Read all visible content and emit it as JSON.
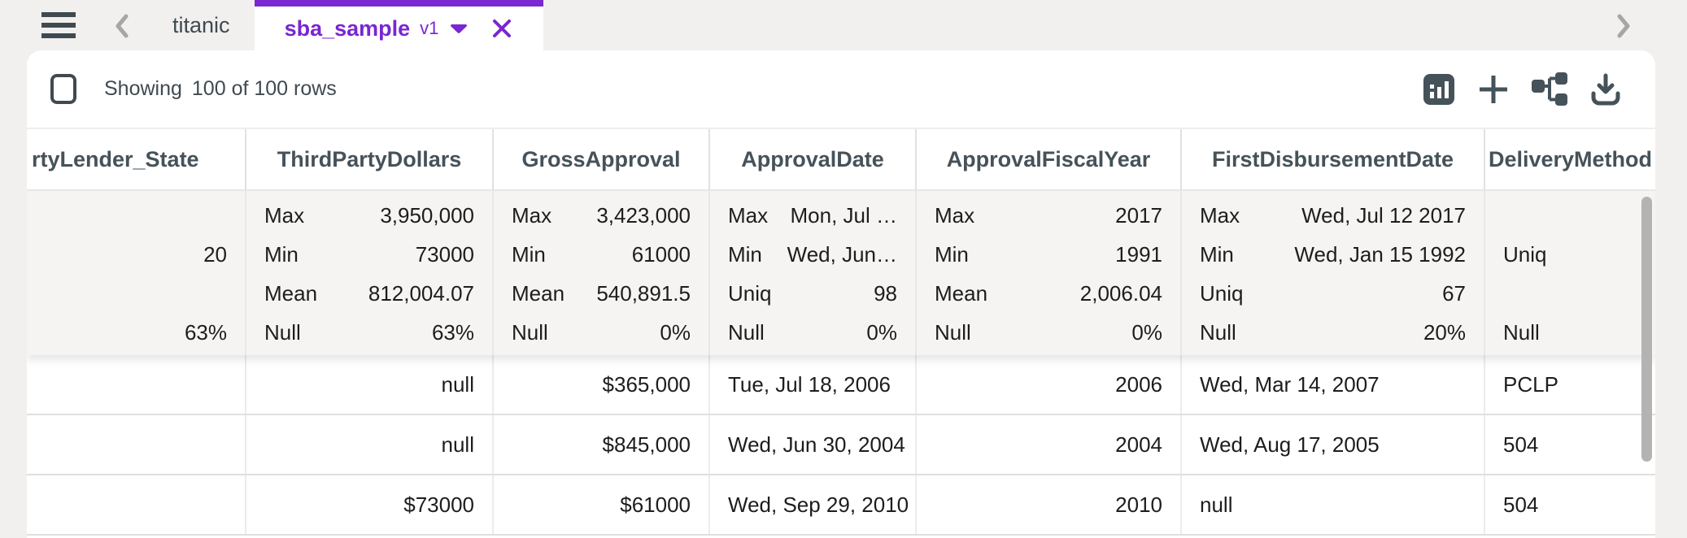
{
  "tab_bar": {
    "inactive_tab": "titanic",
    "active_tab": {
      "label": "sba_sample",
      "version": "v1"
    }
  },
  "toolbar": {
    "showing_label": "Showing",
    "showing_value": "100 of 100 rows",
    "icons": [
      "chart-view-icon",
      "add-icon",
      "schema-icon",
      "download-icon"
    ]
  },
  "colors": {
    "accent_purple": "#7a26d1",
    "icon_dark": "#46525a",
    "stats_background": "#f5f4f2"
  },
  "table": {
    "columns": [
      {
        "header": "rtyLender_State",
        "align": "right",
        "stats": [
          {
            "label": "",
            "value": ""
          },
          {
            "label": "",
            "value": "20"
          },
          {
            "label": "",
            "value": ""
          },
          {
            "label": "",
            "value": "63%"
          }
        ],
        "cells": [
          "",
          "",
          ""
        ]
      },
      {
        "header": "ThirdPartyDollars",
        "align": "right",
        "stats": [
          {
            "label": "Max",
            "value": "3,950,000"
          },
          {
            "label": "Min",
            "value": "73000"
          },
          {
            "label": "Mean",
            "value": "812,004.07"
          },
          {
            "label": "Null",
            "value": "63%"
          }
        ],
        "cells": [
          "null",
          "null",
          "$73000"
        ]
      },
      {
        "header": "GrossApproval",
        "align": "right",
        "stats": [
          {
            "label": "Max",
            "value": "3,423,000"
          },
          {
            "label": "Min",
            "value": "61000"
          },
          {
            "label": "Mean",
            "value": "540,891.5"
          },
          {
            "label": "Null",
            "value": "0%"
          }
        ],
        "cells": [
          "$365,000",
          "$845,000",
          "$61000"
        ]
      },
      {
        "header": "ApprovalDate",
        "align": "left",
        "stats": [
          {
            "label": "Max",
            "value": "Mon, Jul …"
          },
          {
            "label": "Min",
            "value": "Wed, Jun…"
          },
          {
            "label": "Uniq",
            "value": "98"
          },
          {
            "label": "Null",
            "value": "0%"
          }
        ],
        "cells": [
          "Tue, Jul 18, 2006",
          "Wed, Jun 30, 2004",
          "Wed, Sep 29, 2010"
        ]
      },
      {
        "header": "ApprovalFiscalYear",
        "align": "right",
        "stats": [
          {
            "label": "Max",
            "value": "2017"
          },
          {
            "label": "Min",
            "value": "1991"
          },
          {
            "label": "Mean",
            "value": "2,006.04"
          },
          {
            "label": "Null",
            "value": "0%"
          }
        ],
        "cells": [
          "2006",
          "2004",
          "2010"
        ]
      },
      {
        "header": "FirstDisbursementDate",
        "align": "left",
        "stats": [
          {
            "label": "Max",
            "value": "Wed, Jul 12 2017"
          },
          {
            "label": "Min",
            "value": "Wed, Jan 15 1992"
          },
          {
            "label": "Uniq",
            "value": "67"
          },
          {
            "label": "Null",
            "value": "20%"
          }
        ],
        "cells": [
          "Wed, Mar 14, 2007",
          "Wed, Aug 17, 2005",
          "null"
        ]
      },
      {
        "header": "DeliveryMethod",
        "align": "left",
        "stats": [
          {
            "label": "",
            "value": ""
          },
          {
            "label": "Uniq",
            "value": ""
          },
          {
            "label": "",
            "value": ""
          },
          {
            "label": "Null",
            "value": ""
          }
        ],
        "cells": [
          "PCLP",
          "504",
          "504"
        ]
      }
    ]
  }
}
